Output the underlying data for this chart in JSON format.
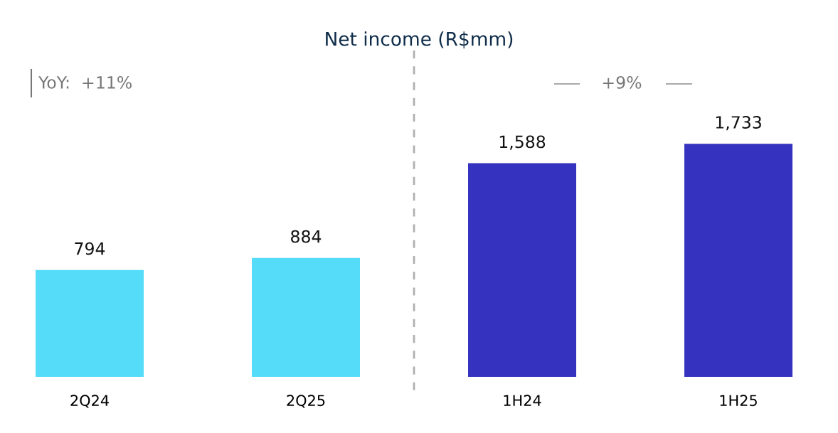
{
  "chart_data": {
    "type": "bar",
    "title": "Net income (R$mm)",
    "categories": [
      "2Q24",
      "2Q25",
      "1H24",
      "1H25"
    ],
    "values": [
      794,
      884,
      1588,
      1733
    ],
    "colors": [
      "#55dcf9",
      "#55dcf9",
      "#3432be",
      "#3432be"
    ],
    "value_labels": [
      "794",
      "884",
      "1,588",
      "1,733"
    ],
    "annotations": [
      "YoY:  +11%",
      "+9%"
    ],
    "grid": false,
    "legend": false
  }
}
